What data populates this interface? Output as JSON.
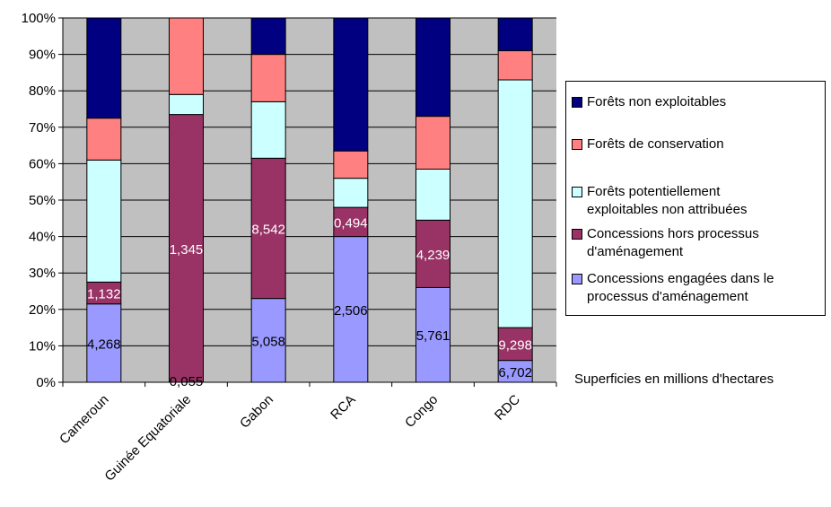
{
  "chart_data": {
    "type": "bar",
    "stacked": true,
    "percent": true,
    "categories": [
      "Cameroun",
      "Guinée Equatoriale",
      "Gabon",
      "RCA",
      "Congo",
      "RDC"
    ],
    "series": [
      {
        "name": "Concessions engagées dans le processus d'aménagement",
        "color": "#9999ff",
        "label_color": "#000000",
        "values": [
          21.5,
          0,
          23,
          40,
          26,
          6
        ],
        "labels": [
          "4,268",
          "0,055",
          "5,058",
          "2,506",
          "5,761",
          "6,702"
        ]
      },
      {
        "name": "Concessions hors processus d'aménagement",
        "color": "#993366",
        "label_color": "#ffffff",
        "values": [
          6,
          73.5,
          38.5,
          8,
          18.5,
          9
        ],
        "labels": [
          "1,132",
          "1,345",
          "8,542",
          "0,494",
          "4,239",
          "9,298"
        ]
      },
      {
        "name": "Forêts potentiellement exploitables non attribuées",
        "color": "#ccffff",
        "values": [
          33.5,
          5.5,
          15.5,
          8,
          14,
          68
        ]
      },
      {
        "name": "Forêts de conservation",
        "color": "#ff8080",
        "values": [
          11.5,
          21,
          13,
          7.5,
          14.5,
          8
        ]
      },
      {
        "name": "Forêts non exploitables",
        "color": "#000080",
        "values": [
          27.5,
          0,
          10,
          36.5,
          27,
          9
        ]
      }
    ],
    "yticks": [
      "0%",
      "10%",
      "20%",
      "30%",
      "40%",
      "50%",
      "60%",
      "70%",
      "80%",
      "90%",
      "100%"
    ],
    "ylim": [
      0,
      100
    ],
    "plot_background": "#c0c0c0",
    "grid": true,
    "legend_position": "right",
    "note": "Superficies en millions d'hectares"
  },
  "legend": [
    {
      "label": "Forêts non exploitables",
      "color": "#000080"
    },
    {
      "label": "Forêts de conservation",
      "color": "#ff8080"
    },
    {
      "label": "Forêts potentiellement exploitables non attribuées",
      "color": "#ccffff"
    },
    {
      "label": "Concessions hors processus d'aménagement",
      "color": "#993366"
    },
    {
      "label": "Concessions engagées dans le processus d'aménagement",
      "color": "#9999ff"
    }
  ]
}
